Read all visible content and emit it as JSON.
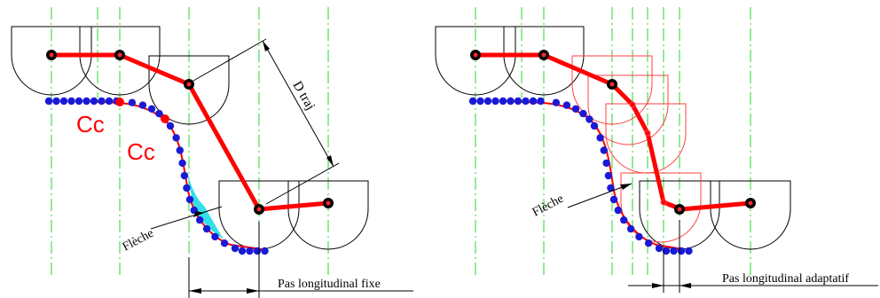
{
  "labels": {
    "cc1": "Cc",
    "cc2": "Cc",
    "d_traj": "D traj",
    "fleche_left": "Flèche",
    "pas_fixe": "Pas longitudinal fixe",
    "fleche_right": "Flèche",
    "pas_adaptatif": "Pas longitudinal adaptatif"
  },
  "colors": {
    "outline": "#000000",
    "trajectory": "#ff0000",
    "points": "#1a1ad6",
    "axis": "#2bd42b",
    "deviation_fill": "#33dfe8",
    "adaptive_tool": "#ff4040",
    "pivot": "#000000"
  }
}
